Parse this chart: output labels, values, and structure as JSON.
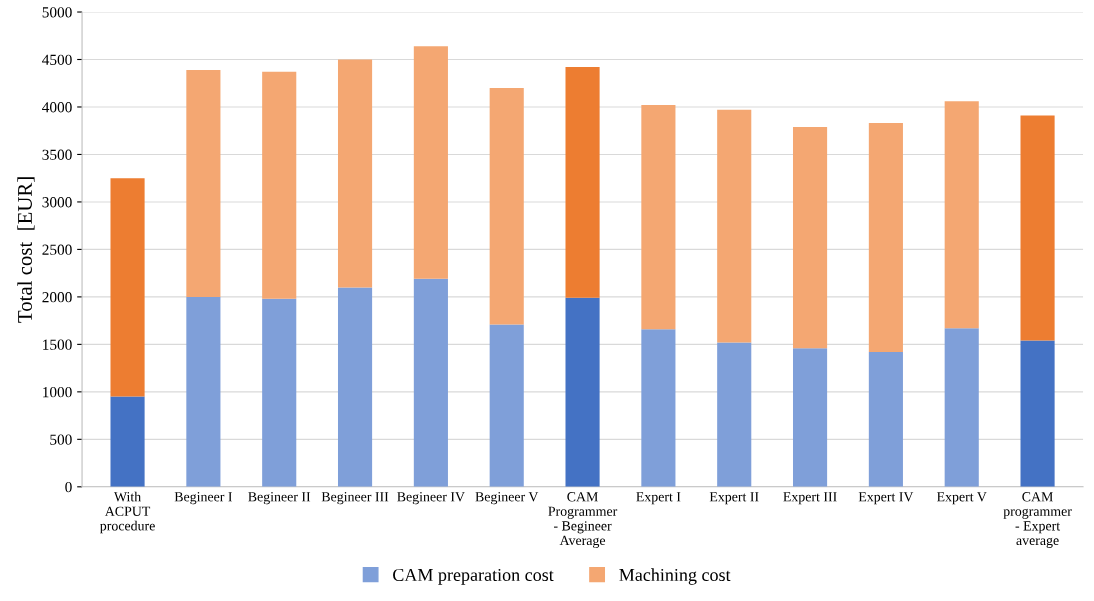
{
  "chart_data": {
    "type": "bar",
    "stacked": true,
    "ylabel": "Total cost  [EUR]",
    "categories": [
      "With\nACPUT\nprocedure",
      "Begineer I",
      "Begineer II",
      "Begineer III",
      "Begineer IV",
      "Begineer V",
      "CAM\nProgrammer\n- Begineer\nAverage",
      "Expert I",
      "Expert II",
      "Expert III",
      "Expert IV",
      "Expert V",
      "CAM\nprogrammer\n- Expert\naverage"
    ],
    "series": [
      {
        "name": "CAM preparation cost",
        "color": "#7f9fd9",
        "colors": [
          "#4472c4",
          "#7f9fd9",
          "#7f9fd9",
          "#7f9fd9",
          "#7f9fd9",
          "#7f9fd9",
          "#4472c4",
          "#7f9fd9",
          "#7f9fd9",
          "#7f9fd9",
          "#7f9fd9",
          "#7f9fd9",
          "#4472c4"
        ],
        "values": [
          950,
          2000,
          1980,
          2100,
          2190,
          1710,
          1990,
          1660,
          1520,
          1460,
          1420,
          1670,
          1540
        ]
      },
      {
        "name": "Machining cost",
        "color": "#f4a772",
        "colors": [
          "#ed7d31",
          "#f4a772",
          "#f4a772",
          "#f4a772",
          "#f4a772",
          "#f4a772",
          "#ed7d31",
          "#f4a772",
          "#f4a772",
          "#f4a772",
          "#f4a772",
          "#f4a772",
          "#ed7d31"
        ],
        "values": [
          2300,
          2390,
          2390,
          2400,
          2450,
          2490,
          2430,
          2360,
          2450,
          2330,
          2410,
          2390,
          2370
        ]
      }
    ],
    "ylim": [
      0,
      5000
    ],
    "yticks": [
      0,
      500,
      1000,
      1500,
      2000,
      2500,
      3000,
      3500,
      4000,
      4500,
      5000
    ],
    "grid": "y",
    "legend": "bottom"
  }
}
